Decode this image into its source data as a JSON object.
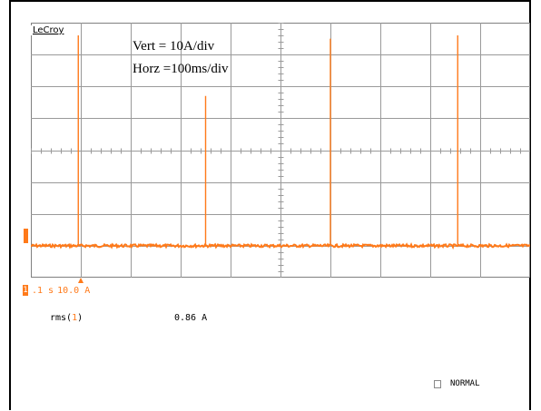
{
  "scope": {
    "brand": "LeCroy",
    "vert_label": "Vert = 10A/div",
    "horz_label": "Horz =100ms/div",
    "grid": {
      "h_divisions": 10,
      "v_divisions": 8
    },
    "trace_color": "#ff7a1a",
    "baseline_level_div": 1.0,
    "spikes": [
      {
        "time_div": 0.95,
        "height_div": 6.6
      },
      {
        "time_div": 3.5,
        "height_div": 4.7
      },
      {
        "time_div": 6.0,
        "height_div": 6.5
      },
      {
        "time_div": 8.55,
        "height_div": 6.6
      }
    ]
  },
  "channel": {
    "number": "1",
    "timebase": ".1 s",
    "scale": "10.0 A"
  },
  "measurement": {
    "label_prefix": "rms(",
    "label_channel": "1",
    "label_suffix": ")",
    "value": "0.86 A"
  },
  "status": {
    "mode": "NORMAL"
  }
}
